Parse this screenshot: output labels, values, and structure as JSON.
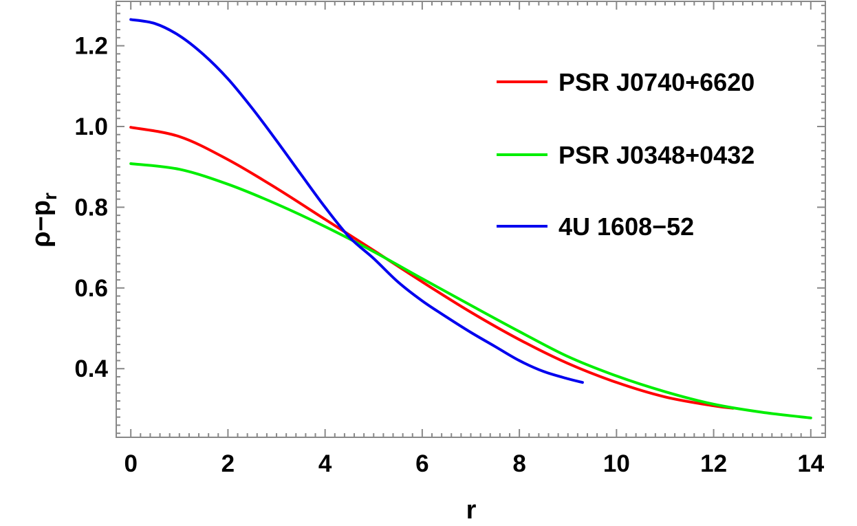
{
  "chart_data": {
    "type": "line",
    "title": "",
    "xlabel": "r",
    "ylabel": "ρ−p",
    "ylabel_sub": "r",
    "xlim": [
      -0.3,
      14.3
    ],
    "ylim": [
      0.23,
      1.31
    ],
    "x_ticks": [
      "0",
      "2",
      "4",
      "6",
      "8",
      "10",
      "12",
      "14"
    ],
    "y_ticks": [
      "0.4",
      "0.6",
      "0.8",
      "1.0",
      "1.2"
    ],
    "x_tick_values": [
      0,
      2,
      4,
      6,
      8,
      10,
      12,
      14
    ],
    "y_tick_values": [
      0.4,
      0.6,
      0.8,
      1.0,
      1.2
    ],
    "grid": false,
    "legend_position": "top-right",
    "series": [
      {
        "name": "PSR J0740+6620",
        "color": "#ff0000",
        "x": [
          0,
          1,
          2,
          3,
          4,
          5,
          6,
          7,
          8,
          9,
          10,
          11,
          12,
          12.4
        ],
        "y": [
          0.998,
          0.975,
          0.918,
          0.847,
          0.77,
          0.693,
          0.615,
          0.54,
          0.472,
          0.413,
          0.366,
          0.33,
          0.308,
          0.302
        ]
      },
      {
        "name": "PSR J0348+0432",
        "color": "#00ee00",
        "x": [
          0,
          1,
          2,
          3,
          4,
          5,
          6,
          7,
          8,
          9,
          10,
          11,
          12,
          13,
          14
        ],
        "y": [
          0.908,
          0.894,
          0.857,
          0.808,
          0.752,
          0.69,
          0.623,
          0.557,
          0.492,
          0.43,
          0.382,
          0.343,
          0.312,
          0.292,
          0.278
        ]
      },
      {
        "name": "4U 1608−52",
        "color": "#0000ee",
        "x": [
          0,
          0.5,
          1,
          1.5,
          2,
          2.5,
          3,
          3.5,
          4,
          4.5,
          5,
          5.5,
          6,
          6.5,
          7,
          7.5,
          8,
          8.5,
          9,
          9.3
        ],
        "y": [
          1.265,
          1.255,
          1.225,
          1.178,
          1.118,
          1.045,
          0.965,
          0.882,
          0.8,
          0.726,
          0.673,
          0.615,
          0.568,
          0.528,
          0.49,
          0.455,
          0.42,
          0.393,
          0.375,
          0.366
        ]
      }
    ]
  }
}
